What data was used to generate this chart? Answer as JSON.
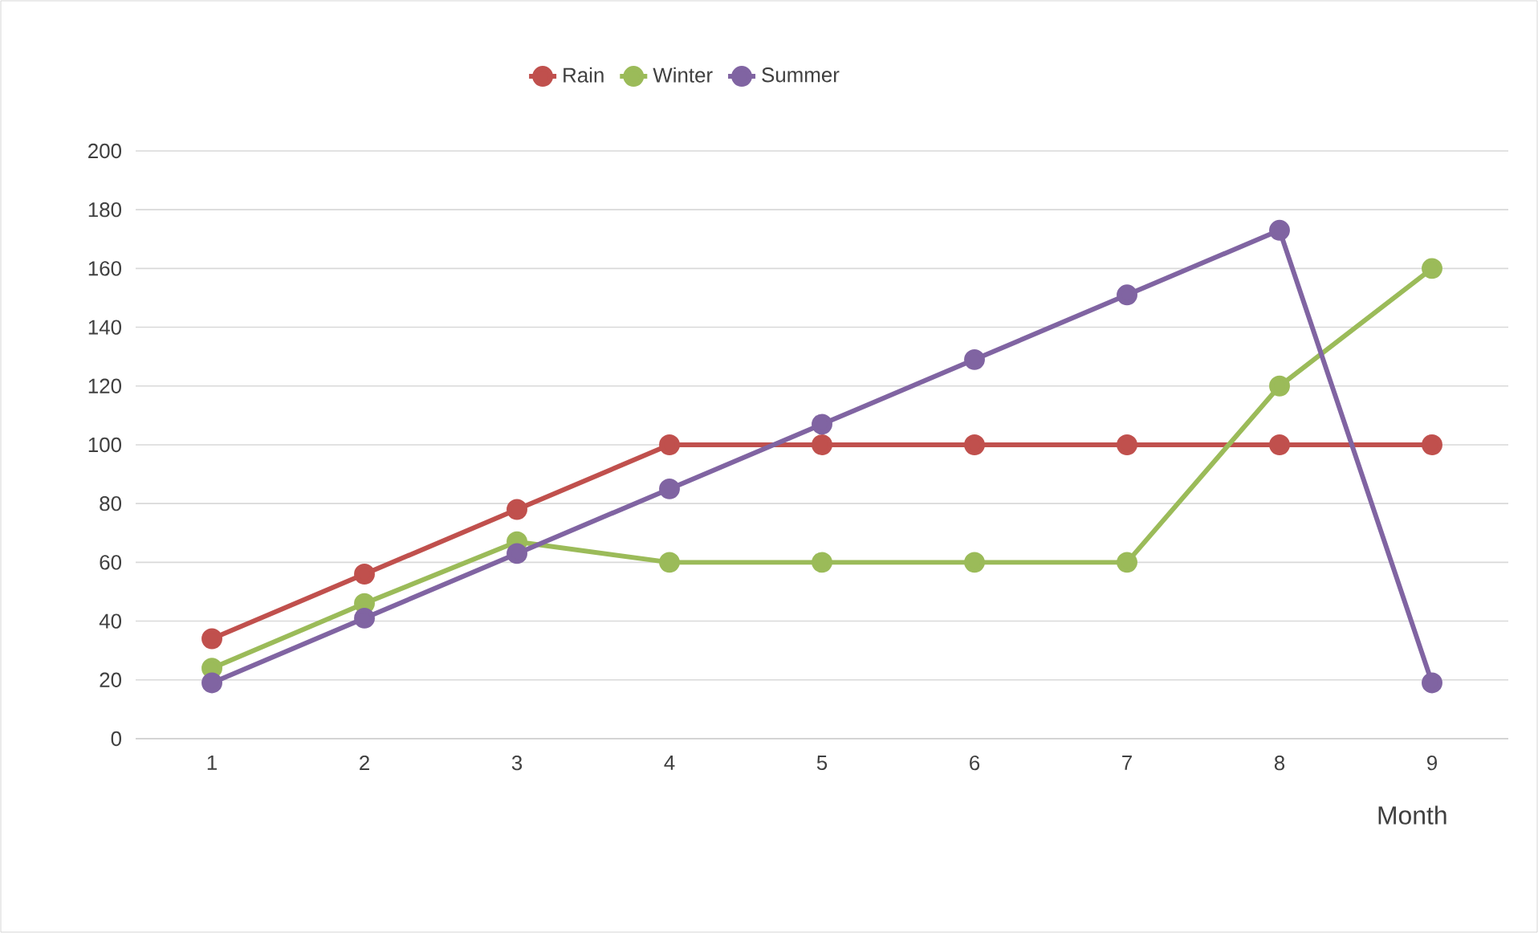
{
  "chart_data": {
    "type": "line",
    "xlabel": "Month",
    "categories": [
      "1",
      "2",
      "3",
      "4",
      "5",
      "6",
      "7",
      "8",
      "9"
    ],
    "series": [
      {
        "name": "Rain",
        "color": "#c0504d",
        "values": [
          34,
          56,
          78,
          100,
          100,
          100,
          100,
          100,
          100
        ]
      },
      {
        "name": "Winter",
        "color": "#9bbb59",
        "values": [
          24,
          46,
          67,
          60,
          60,
          60,
          60,
          120,
          160
        ]
      },
      {
        "name": "Summer",
        "color": "#8064a2",
        "values": [
          19,
          41,
          63,
          85,
          107,
          129,
          151,
          173,
          19
        ]
      }
    ],
    "ylim": [
      0,
      200
    ],
    "yticks": [
      0,
      20,
      40,
      60,
      80,
      100,
      120,
      140,
      160,
      180,
      200
    ],
    "grid": "y",
    "legend": "top",
    "marker": "circle",
    "line_style": "solid"
  }
}
